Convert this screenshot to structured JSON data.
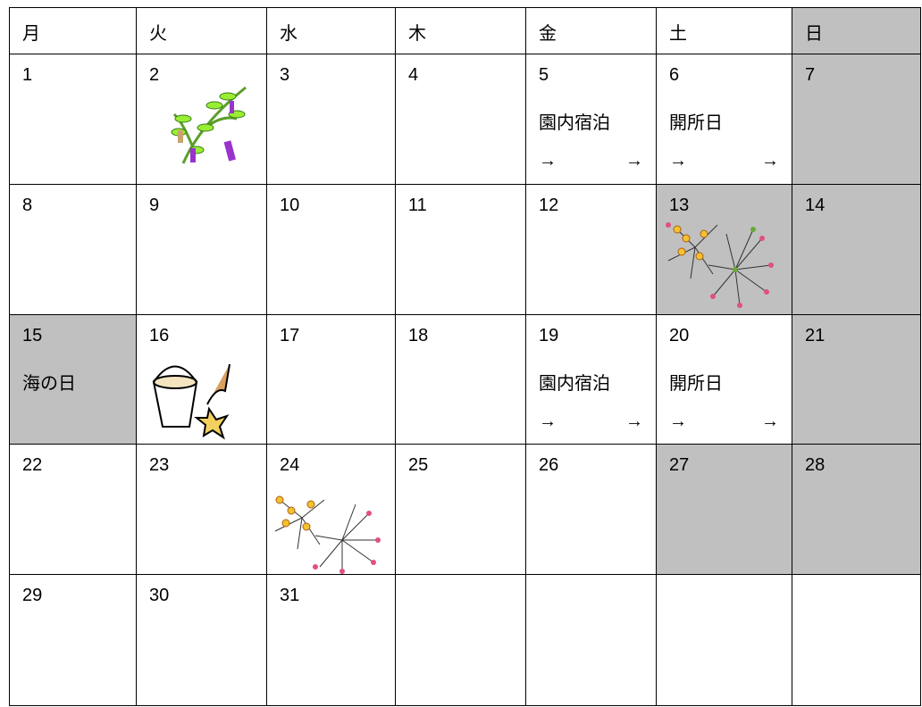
{
  "table": {
    "header": [
      {
        "label": "月"
      },
      {
        "label": "火"
      },
      {
        "label": "水"
      },
      {
        "label": "木"
      },
      {
        "label": "金"
      },
      {
        "label": "土"
      },
      {
        "label": "日",
        "shaded": true
      }
    ],
    "rows": [
      [
        {
          "day": 1
        },
        {
          "day": 2
        },
        {
          "day": 3
        },
        {
          "day": 4
        },
        {
          "day": 5,
          "lines": [
            "園内宿泊"
          ],
          "arrows": [
            "→",
            "→"
          ]
        },
        {
          "day": 6,
          "lines": [
            "開所日"
          ],
          "arrows": [
            "→",
            "→"
          ]
        },
        {
          "day": 7,
          "shaded": true
        }
      ],
      [
        {
          "day": 8
        },
        {
          "day": 9
        },
        {
          "day": 10
        },
        {
          "day": 11
        },
        {
          "day": 12
        },
        {
          "day": 13,
          "shaded": true
        },
        {
          "day": 14,
          "shaded": true
        }
      ],
      [
        {
          "day": 15,
          "lines": [
            "海の日"
          ],
          "shaded": true
        },
        {
          "day": 16
        },
        {
          "day": 17
        },
        {
          "day": 18
        },
        {
          "day": 19,
          "lines": [
            "園内宿泊"
          ],
          "arrows": [
            "→",
            "→"
          ]
        },
        {
          "day": 20,
          "lines": [
            "開所日"
          ],
          "arrows": [
            "→",
            "→"
          ]
        },
        {
          "day": 21,
          "shaded": true
        }
      ],
      [
        {
          "day": 22
        },
        {
          "day": 23
        },
        {
          "day": 24
        },
        {
          "day": 25
        },
        {
          "day": 26
        },
        {
          "day": 27,
          "shaded": true
        },
        {
          "day": 28,
          "shaded": true
        }
      ],
      [
        {
          "day": 29
        },
        {
          "day": 30
        },
        {
          "day": 31
        },
        null,
        null,
        null,
        null
      ]
    ]
  }
}
